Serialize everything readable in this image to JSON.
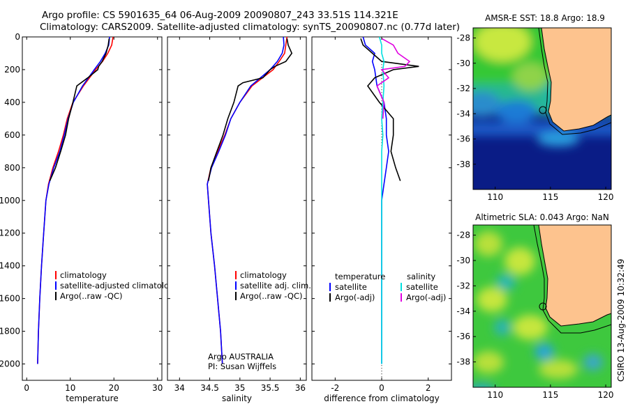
{
  "header": {
    "title_line1": "Argo profile: CS 5901635_64 06-Aug-2009 20090807_243 33.51S 114.321E",
    "title_line2": "Climatology: CARS2009. Satellite-adjusted climatology: synTS_20090807.nc (0.77d later)"
  },
  "footer": {
    "vertical_stamp": "CSIRO 13-Aug-2009 10:32:49"
  },
  "colors": {
    "climatology": "#ff0000",
    "satellite": "#0000ff",
    "argo": "#000000",
    "sal_satellite": "#00e0e0",
    "sal_argo": "#e000e0",
    "land": "#fdc38e",
    "ocean_warm": "#34cc34",
    "ocean_cold": "#00107a"
  },
  "chart_data": [
    {
      "id": "temperature",
      "type": "line",
      "xlabel": "temperature",
      "xlim": [
        -1,
        31
      ],
      "ylim": [
        2100,
        0
      ],
      "xticks": [
        0,
        10,
        20,
        30
      ],
      "yticks": [
        0,
        200,
        400,
        600,
        800,
        1000,
        1200,
        1400,
        1600,
        1800,
        2000
      ],
      "series": [
        {
          "name": "climatology",
          "color": "#ff0000",
          "points": [
            [
              19.8,
              0
            ],
            [
              19.5,
              50
            ],
            [
              18.6,
              100
            ],
            [
              17.4,
              150
            ],
            [
              15.8,
              200
            ],
            [
              13.0,
              300
            ],
            [
              10.6,
              400
            ],
            [
              9.3,
              500
            ],
            [
              8.4,
              600
            ],
            [
              7.3,
              700
            ],
            [
              6.0,
              800
            ],
            [
              5.0,
              900
            ],
            [
              4.4,
              1000
            ],
            [
              3.9,
              1200
            ],
            [
              3.4,
              1400
            ],
            [
              3.0,
              1600
            ],
            [
              2.7,
              1800
            ],
            [
              2.5,
              2000
            ]
          ]
        },
        {
          "name": "satellite-adjusted climatology",
          "color": "#0000ff",
          "points": [
            [
              19.0,
              0
            ],
            [
              18.8,
              50
            ],
            [
              18.0,
              100
            ],
            [
              16.9,
              150
            ],
            [
              15.5,
              200
            ],
            [
              12.8,
              300
            ],
            [
              10.7,
              400
            ],
            [
              9.5,
              500
            ],
            [
              8.6,
              600
            ],
            [
              7.6,
              700
            ],
            [
              6.2,
              800
            ],
            [
              5.1,
              900
            ],
            [
              4.4,
              1000
            ],
            [
              3.9,
              1200
            ],
            [
              3.4,
              1400
            ],
            [
              3.0,
              1600
            ],
            [
              2.7,
              1800
            ],
            [
              2.5,
              2000
            ]
          ]
        },
        {
          "name": "Argo(..raw -QC)",
          "color": "#000000",
          "points": [
            [
              18.9,
              10
            ],
            [
              18.7,
              50
            ],
            [
              18.2,
              100
            ],
            [
              17.3,
              150
            ],
            [
              16.5,
              180
            ],
            [
              16.3,
              200
            ],
            [
              14.0,
              250
            ],
            [
              11.5,
              300
            ],
            [
              10.6,
              400
            ],
            [
              9.6,
              500
            ],
            [
              8.9,
              600
            ],
            [
              7.8,
              700
            ],
            [
              6.6,
              800
            ],
            [
              5.3,
              880
            ]
          ]
        }
      ],
      "legend": [
        "climatology",
        "satellite-adjusted climatology",
        "Argo(..raw -QC)"
      ]
    },
    {
      "id": "salinity",
      "type": "line",
      "xlabel": "salinity",
      "xlim": [
        33.8,
        36.1
      ],
      "ylim": [
        2100,
        0
      ],
      "xticks": [
        34,
        34.5,
        35,
        35.5,
        36
      ],
      "series": [
        {
          "name": "climatology",
          "color": "#ff0000",
          "points": [
            [
              35.78,
              0
            ],
            [
              35.76,
              50
            ],
            [
              35.74,
              100
            ],
            [
              35.65,
              150
            ],
            [
              35.55,
              200
            ],
            [
              35.2,
              300
            ],
            [
              35.0,
              400
            ],
            [
              34.85,
              500
            ],
            [
              34.75,
              600
            ],
            [
              34.63,
              700
            ],
            [
              34.52,
              800
            ],
            [
              34.46,
              900
            ],
            [
              34.48,
              1000
            ],
            [
              34.52,
              1200
            ],
            [
              34.58,
              1400
            ],
            [
              34.63,
              1600
            ],
            [
              34.68,
              1800
            ],
            [
              34.71,
              2000
            ]
          ]
        },
        {
          "name": "satellite adj. clim.",
          "color": "#0000ff",
          "points": [
            [
              35.72,
              0
            ],
            [
              35.73,
              50
            ],
            [
              35.7,
              100
            ],
            [
              35.62,
              150
            ],
            [
              35.5,
              200
            ],
            [
              35.18,
              300
            ],
            [
              35.0,
              400
            ],
            [
              34.85,
              500
            ],
            [
              34.76,
              600
            ],
            [
              34.65,
              700
            ],
            [
              34.53,
              800
            ],
            [
              34.46,
              900
            ],
            [
              34.48,
              1000
            ],
            [
              34.52,
              1200
            ],
            [
              34.58,
              1400
            ],
            [
              34.63,
              1600
            ],
            [
              34.68,
              1800
            ],
            [
              34.71,
              2000
            ]
          ]
        },
        {
          "name": "Argo(..raw -QC)",
          "color": "#000000",
          "points": [
            [
              35.78,
              10
            ],
            [
              35.8,
              50
            ],
            [
              35.86,
              100
            ],
            [
              35.76,
              150
            ],
            [
              35.58,
              180
            ],
            [
              35.5,
              200
            ],
            [
              35.38,
              250
            ],
            [
              35.05,
              280
            ],
            [
              34.97,
              300
            ],
            [
              34.9,
              400
            ],
            [
              34.8,
              500
            ],
            [
              34.72,
              600
            ],
            [
              34.62,
              700
            ],
            [
              34.52,
              800
            ],
            [
              34.48,
              880
            ]
          ]
        }
      ],
      "legend": [
        "climatology",
        "satellite adj. clim.",
        "Argo(..raw -QC)"
      ],
      "annotation": [
        "Argo AUSTRALIA",
        "PI: Susan Wijffels"
      ]
    },
    {
      "id": "difference",
      "type": "line",
      "xlabel": "difference from climatology",
      "xlim": [
        -3,
        3
      ],
      "ylim": [
        2100,
        0
      ],
      "xticks": [
        -2,
        0,
        2
      ],
      "series": [
        {
          "name": "temperature satellite",
          "color": "#0000ff",
          "points": [
            [
              -0.8,
              0
            ],
            [
              -0.7,
              50
            ],
            [
              -0.3,
              100
            ],
            [
              -0.4,
              150
            ],
            [
              -0.3,
              200
            ],
            [
              -0.2,
              300
            ],
            [
              0.1,
              400
            ],
            [
              0.2,
              500
            ],
            [
              0.2,
              600
            ],
            [
              0.3,
              700
            ],
            [
              0.2,
              800
            ],
            [
              0.1,
              900
            ],
            [
              0.0,
              1000
            ],
            [
              0.0,
              1200
            ],
            [
              0.0,
              1400
            ],
            [
              0.0,
              1600
            ],
            [
              0.0,
              1800
            ],
            [
              0.0,
              2000
            ]
          ]
        },
        {
          "name": "temperature Argo(-adj)",
          "color": "#000000",
          "points": [
            [
              -0.9,
              10
            ],
            [
              -0.8,
              50
            ],
            [
              -0.4,
              100
            ],
            [
              0.0,
              150
            ],
            [
              1.6,
              180
            ],
            [
              0.5,
              200
            ],
            [
              -0.3,
              250
            ],
            [
              -0.6,
              300
            ],
            [
              -0.1,
              400
            ],
            [
              0.5,
              500
            ],
            [
              0.5,
              600
            ],
            [
              0.4,
              700
            ],
            [
              0.6,
              800
            ],
            [
              0.8,
              880
            ]
          ]
        },
        {
          "name": "salinity satellite",
          "color": "#00e0e0",
          "points": [
            [
              -0.1,
              0
            ],
            [
              0.0,
              50
            ],
            [
              0.0,
              100
            ],
            [
              0.1,
              150
            ],
            [
              0.05,
              200
            ],
            [
              0.1,
              300
            ],
            [
              0.05,
              400
            ],
            [
              0.0,
              500
            ],
            [
              0.05,
              600
            ],
            [
              0.0,
              700
            ],
            [
              0.0,
              800
            ],
            [
              0.0,
              900
            ],
            [
              0.0,
              1000
            ],
            [
              0.0,
              1200
            ],
            [
              0.0,
              1400
            ],
            [
              0.0,
              1600
            ],
            [
              0.0,
              1800
            ],
            [
              0.0,
              2000
            ]
          ]
        },
        {
          "name": "salinity Argo(-adj)",
          "color": "#e000e0",
          "points": [
            [
              0.0,
              10
            ],
            [
              0.5,
              50
            ],
            [
              0.7,
              100
            ],
            [
              1.2,
              150
            ],
            [
              1.0,
              180
            ],
            [
              0.0,
              200
            ],
            [
              0.3,
              250
            ],
            [
              -0.2,
              300
            ],
            [
              0.1,
              400
            ],
            [
              0.05,
              500
            ]
          ]
        }
      ],
      "legend_left": {
        "title": "temperature",
        "items": [
          "satellite",
          "Argo(-adj)"
        ]
      },
      "legend_right": {
        "title": "salinity",
        "items": [
          "satellite",
          "Argo(-adj)"
        ]
      }
    },
    {
      "id": "sst_map",
      "type": "heatmap",
      "title": "AMSR-E SST: 18.8  Argo: 18.9",
      "xlim": [
        108,
        120.5
      ],
      "ylim": [
        -40,
        -27.2
      ],
      "xticks": [
        110,
        115,
        120
      ],
      "yticks": [
        -28,
        -30,
        -32,
        -34,
        -36,
        -38
      ],
      "marker": [
        114.321,
        -33.51
      ]
    },
    {
      "id": "sla_map",
      "type": "heatmap",
      "title": "Altimetric SLA: 0.043  Argo: NaN",
      "xlim": [
        108,
        120.5
      ],
      "ylim": [
        -40,
        -27.2
      ],
      "xticks": [
        110,
        115,
        120
      ],
      "yticks": [
        -28,
        -30,
        -32,
        -34,
        -36,
        -38
      ],
      "marker": [
        114.321,
        -33.51
      ]
    }
  ]
}
